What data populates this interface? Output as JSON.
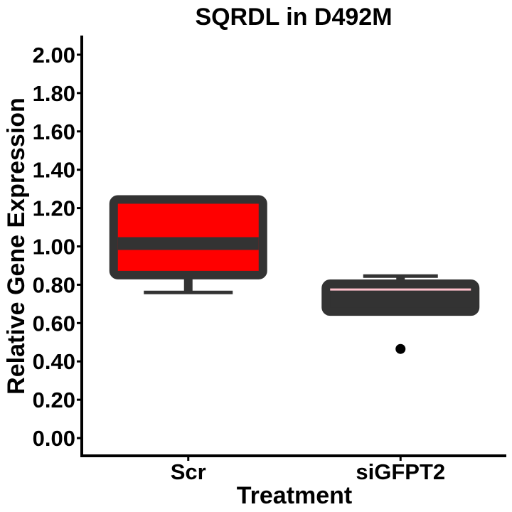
{
  "chart_data": {
    "type": "boxplot",
    "title": "SQRDL in D492M",
    "xlabel": "Treatment",
    "ylabel": "Relative Gene Expression",
    "ylim": [
      -0.1,
      2.1
    ],
    "yticks": [
      0.0,
      0.2,
      0.4,
      0.6,
      0.8,
      1.0,
      1.2,
      1.4,
      1.6,
      1.8,
      2.0
    ],
    "ytick_labels": [
      "0.00",
      "0.20",
      "0.40",
      "0.60",
      "0.80",
      "1.00",
      "1.20",
      "1.40",
      "1.60",
      "1.80",
      "2.00"
    ],
    "categories": [
      "Scr",
      "siGFPT2"
    ],
    "boxes": [
      {
        "category": "Scr",
        "lower_whisker": 0.76,
        "q1": 0.85,
        "median": 1.015,
        "q3": 1.245,
        "upper_whisker": 1.245,
        "outliers": [],
        "fill": "#ff0000",
        "median_color": "#333333"
      },
      {
        "category": "siGFPT2",
        "lower_whisker": 0.66,
        "q1": 0.66,
        "median": 0.775,
        "q3": 0.805,
        "upper_whisker": 0.845,
        "outliers": [
          0.465
        ],
        "fill": "#333333",
        "median_color": "#ffc0cb"
      }
    ],
    "grid": false,
    "legend": "none"
  },
  "colors": {
    "box_outline": "#333333",
    "axis": "#000000",
    "outlier": "#000000"
  }
}
